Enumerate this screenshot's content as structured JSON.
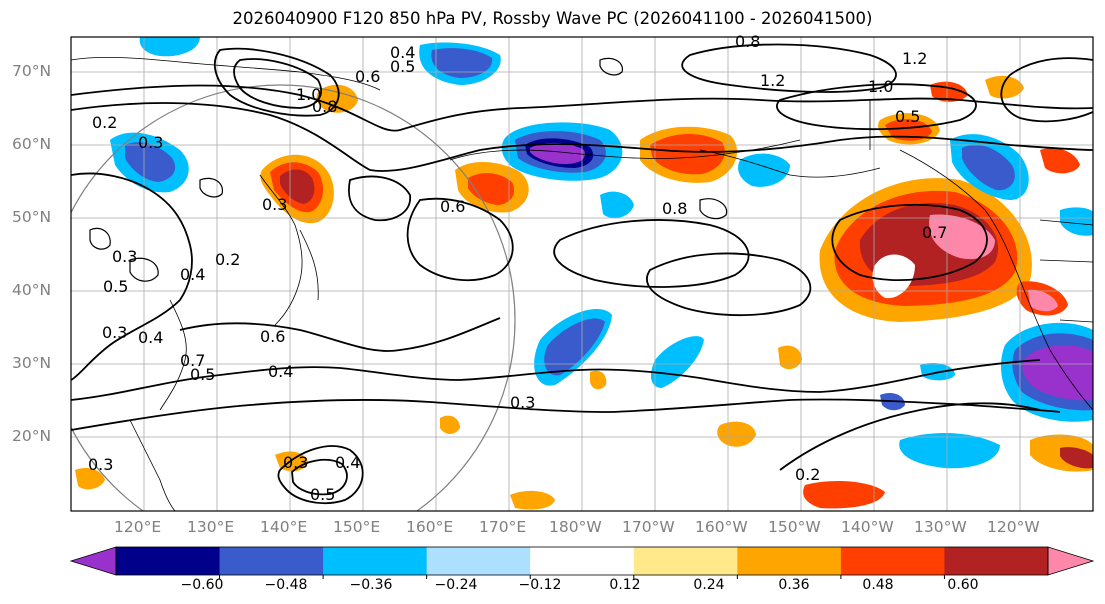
{
  "title": "2026040900 F120 850 hPa PV, Rossby Wave PC (2026041100 - 2026041500)",
  "map": {
    "lat_labels": [
      "70°N",
      "60°N",
      "50°N",
      "40°N",
      "30°N",
      "20°N"
    ],
    "lat_values": [
      70,
      60,
      50,
      40,
      30,
      20
    ],
    "lon_labels": [
      "120°E",
      "130°E",
      "140°E",
      "150°E",
      "160°E",
      "170°E",
      "180°W",
      "170°W",
      "160°W",
      "150°W",
      "140°W",
      "130°W",
      "120°W"
    ],
    "lon_values": [
      120,
      130,
      140,
      150,
      160,
      170,
      180,
      190,
      200,
      210,
      220,
      230,
      240
    ],
    "extent": {
      "lon_min": 110,
      "lon_max": 250,
      "lat_min": 10,
      "lat_max": 75
    },
    "contour_labels": [
      "0.4",
      "0.5",
      "0.6",
      "1.0",
      "0.8",
      "0.2",
      "0.3",
      "0.8",
      "1.2",
      "1.2",
      "1.0",
      "0.5",
      "0.6",
      "0.8",
      "0.7",
      "0.3",
      "0.4",
      "0.2",
      "0.5",
      "0.3",
      "0.4",
      "0.3",
      "0.6",
      "0.7",
      "0.5",
      "0.4",
      "0.3",
      "0.2",
      "0.3",
      "0.4",
      "0.5",
      "0.3"
    ]
  },
  "colorbar": {
    "ticks": [
      "−0.60",
      "−0.48",
      "−0.36",
      "−0.24",
      "−0.12",
      "0.12",
      "0.24",
      "0.36",
      "0.48",
      "0.60"
    ],
    "colors": [
      "#9932CC",
      "#00008B",
      "#3A5BCB",
      "#00BFFF",
      "#ADDFFF",
      "#FFFFFF",
      "#FFE98A",
      "#FFA500",
      "#FF3F00",
      "#B22222",
      "#FF88AA"
    ]
  }
}
